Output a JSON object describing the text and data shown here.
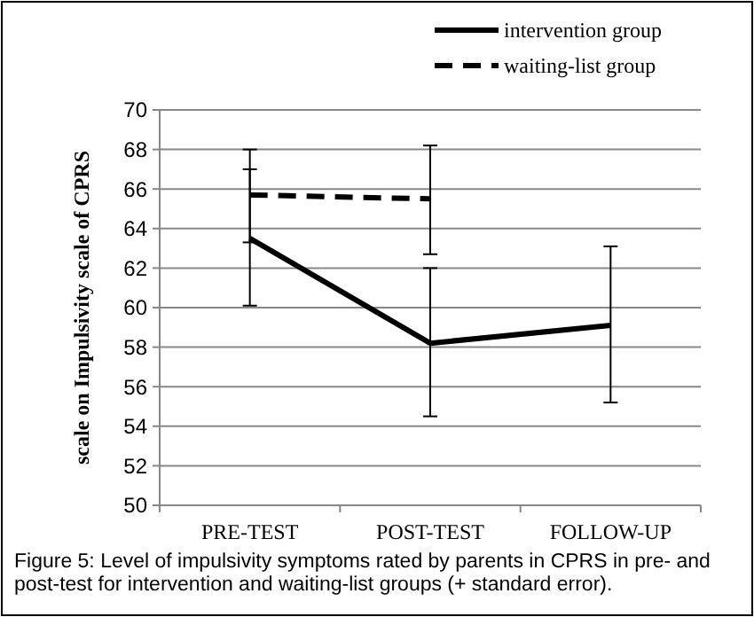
{
  "chart_data": {
    "type": "line",
    "ylabel": "scale on Impulsivity scale of CPRS",
    "categories": [
      "PRE-TEST",
      "POST-TEST",
      "FOLLOW-UP"
    ],
    "series": [
      {
        "name": "intervention group",
        "color": "#000000",
        "line_style": "solid",
        "values": [
          63.5,
          58.2,
          59.1
        ],
        "errors": [
          [
            60.1,
            67.0
          ],
          [
            54.5,
            62.0
          ],
          [
            55.2,
            63.1
          ]
        ]
      },
      {
        "name": "waiting-list group",
        "color": "#000000",
        "line_style": "dashed",
        "values": [
          65.7,
          65.5,
          null
        ],
        "errors": [
          [
            63.3,
            68.0
          ],
          [
            62.7,
            68.2
          ],
          null
        ]
      }
    ],
    "ylim": [
      50,
      70
    ],
    "yticks": [
      50,
      52,
      54,
      56,
      58,
      60,
      62,
      64,
      66,
      68,
      70
    ],
    "grid": "y",
    "legend": "top right",
    "marker": "none",
    "annotations": [
      "Figure 5: Level of impulsivity symptoms rated by parents in CPRS in pre- and post-test for intervention and waiting-list groups (+ standard error)."
    ]
  }
}
